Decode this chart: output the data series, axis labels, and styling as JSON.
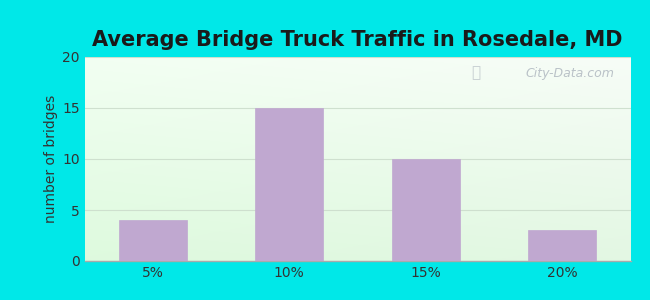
{
  "title": "Average Bridge Truck Traffic in Rosedale, MD",
  "categories": [
    "5%",
    "10%",
    "15%",
    "20%"
  ],
  "values": [
    4,
    15,
    10,
    3
  ],
  "bar_color": "#c0a8d0",
  "bar_edgecolor": "#c0a8d0",
  "ylabel": "number of bridges",
  "ylim": [
    0,
    20
  ],
  "yticks": [
    0,
    5,
    10,
    15,
    20
  ],
  "grid_color": "#ccddcc",
  "background_outer": "#00e8e8",
  "title_fontsize": 15,
  "title_color": "#1a1a1a",
  "ylabel_fontsize": 10,
  "tick_fontsize": 10,
  "watermark_text": "City-Data.com",
  "watermark_color": "#b0b8c0",
  "grad_top_color": "#f5fffa",
  "grad_bottom_color": "#d8f0d8",
  "grad_right_color": "#f8ffff",
  "grad_left_color": "#c8ecc8"
}
